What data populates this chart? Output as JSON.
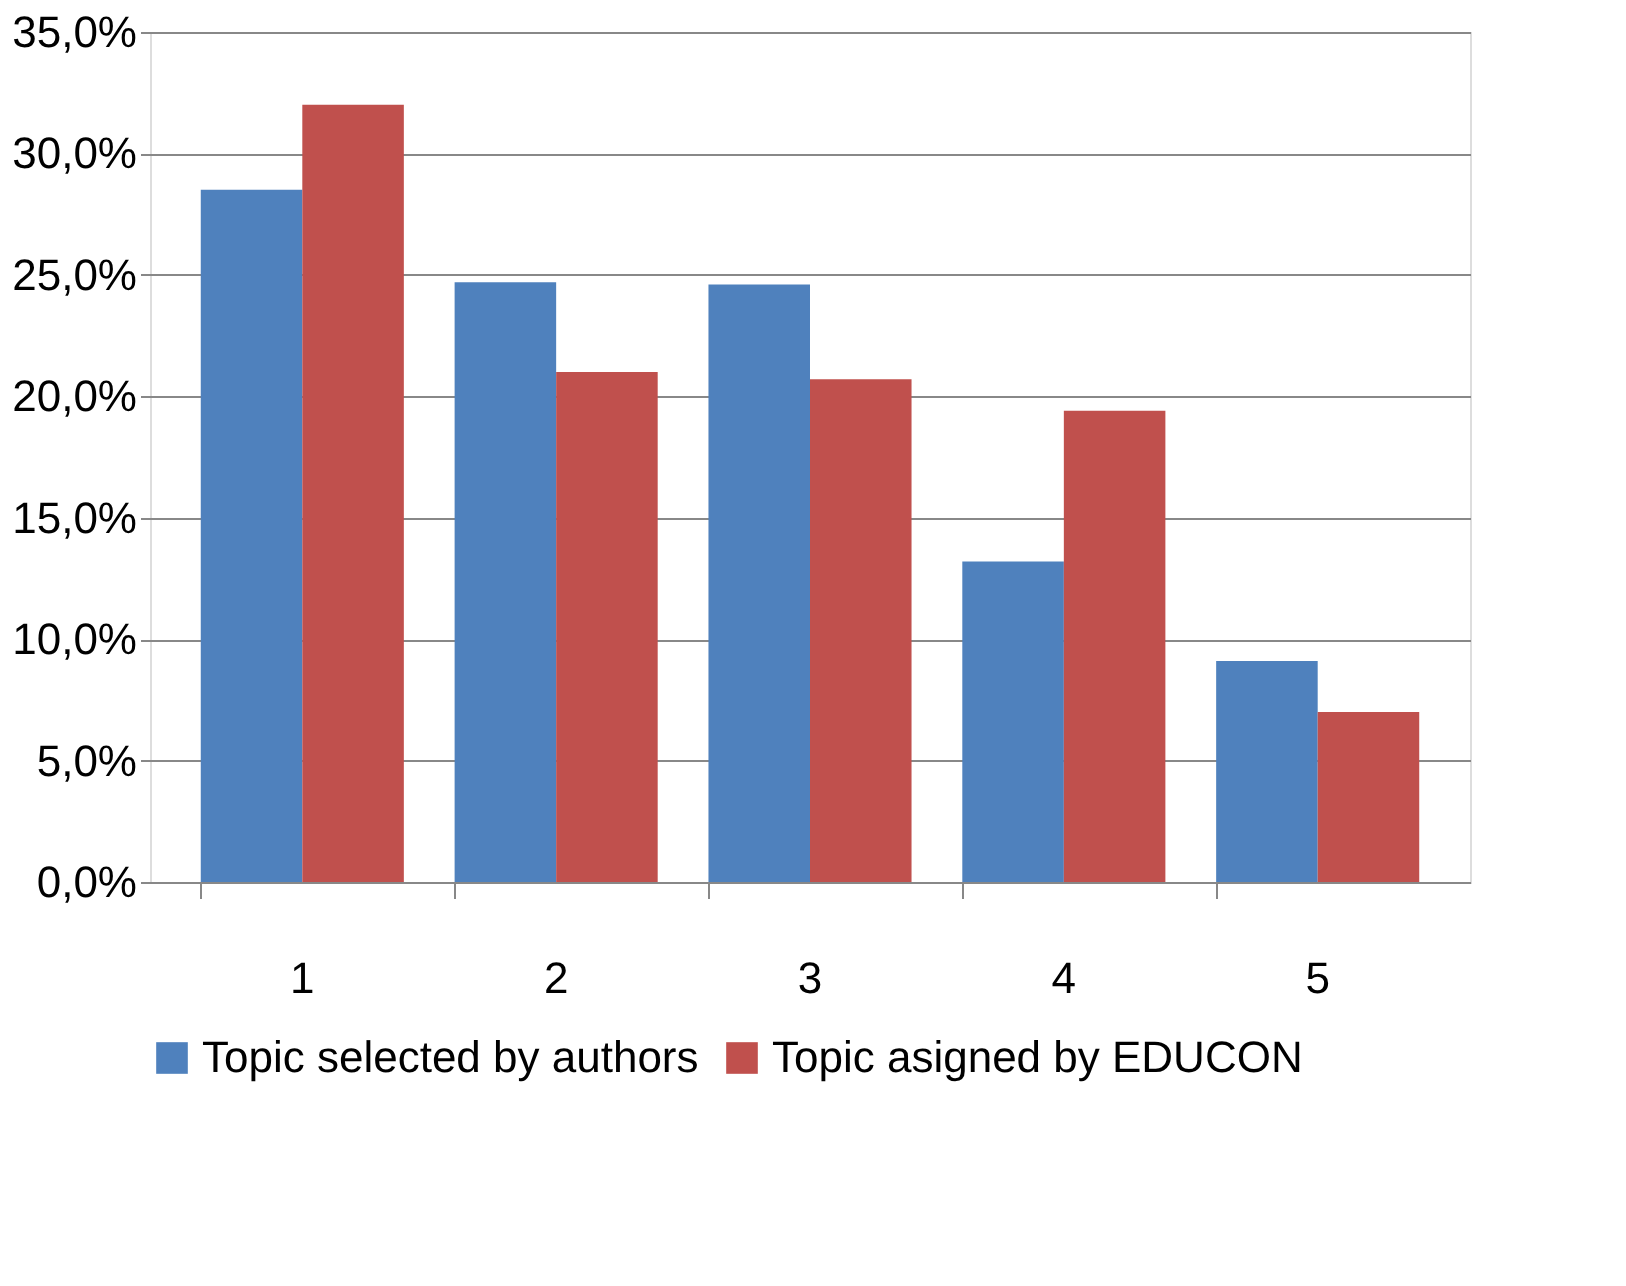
{
  "chart_data": {
    "type": "bar",
    "categories": [
      "1",
      "2",
      "3",
      "4",
      "5"
    ],
    "series": [
      {
        "name": "Topic selected by authors",
        "color": "#4f81bd",
        "values": [
          28.5,
          24.7,
          24.6,
          13.2,
          9.1
        ]
      },
      {
        "name": "Topic asigned by EDUCON",
        "color": "#c0504d",
        "values": [
          32.0,
          21.0,
          20.7,
          19.4,
          7.0
        ]
      }
    ],
    "ylim": [
      0,
      35
    ],
    "yticks": [
      {
        "value": 0,
        "label": "0,0%"
      },
      {
        "value": 5,
        "label": "5,0%"
      },
      {
        "value": 10,
        "label": "10,0%"
      },
      {
        "value": 15,
        "label": "15,0%"
      },
      {
        "value": 20,
        "label": "20,0%"
      },
      {
        "value": 25,
        "label": "25,0%"
      },
      {
        "value": 30,
        "label": "30,0%"
      },
      {
        "value": 35,
        "label": "35,0%"
      }
    ],
    "grid": "y",
    "legend": "bottom"
  }
}
